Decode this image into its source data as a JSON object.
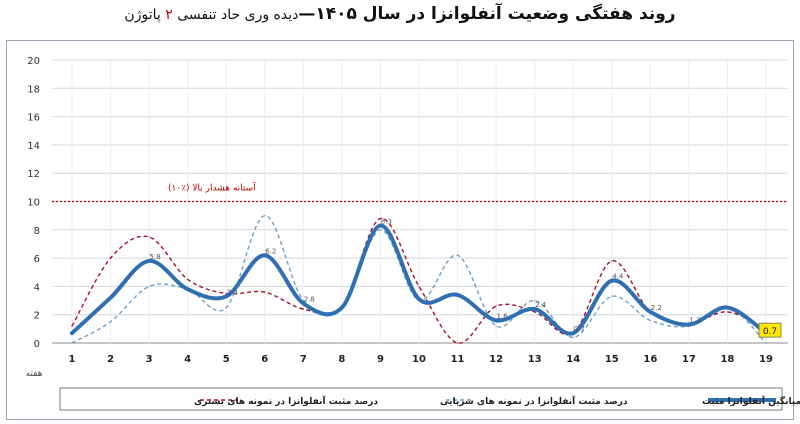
{
  "title": {
    "main": "روند هفتگی وضعیت آنفلوانزا در سال ۱۴۰۵",
    "dash": "—",
    "sub_prefix": "دیده وری حاد تنفسی",
    "sub_number": "۲",
    "sub_suffix": "پاتوژن"
  },
  "chart_data": {
    "type": "line",
    "x": [
      1,
      2,
      3,
      4,
      5,
      6,
      7,
      8,
      9,
      10,
      11,
      12,
      13,
      14,
      15,
      16,
      17,
      18,
      19
    ],
    "xtick_labels": [
      "1",
      "2",
      "3",
      "4",
      "5",
      "6",
      "7",
      "8",
      "9",
      "10",
      "11",
      "12",
      "13",
      "14",
      "15",
      "16",
      "17",
      "18",
      "19"
    ],
    "xlabel": "هفته",
    "ylim": [
      0,
      20
    ],
    "yticks": [
      0,
      2,
      4,
      6,
      8,
      10,
      12,
      14,
      16,
      18,
      20
    ],
    "grid": true,
    "threshold": {
      "value": 10,
      "label": "آستانه هشدار بالا (٪۱۰)",
      "color": "#c00000"
    },
    "series": [
      {
        "name": "درصد مثبت آنفلوانزا در نمونه های بستری",
        "style": "dashed",
        "color": "#a8102a",
        "values": [
          1.2,
          6.0,
          7.5,
          4.5,
          3.5,
          3.6,
          2.4,
          2.6,
          8.8,
          4.0,
          0.0,
          2.6,
          2.2,
          0.7,
          5.8,
          2.2,
          1.4,
          2.2,
          1.0
        ]
      },
      {
        "name": "درصد مثبت آنفلوانزا در نمونه های سرپایی",
        "style": "dashed",
        "color": "#6f9fc7",
        "values": [
          0.0,
          1.5,
          4.0,
          3.8,
          2.5,
          9.0,
          3.0,
          2.4,
          8.0,
          3.0,
          6.2,
          1.2,
          3.0,
          0.4,
          3.3,
          1.6,
          1.2,
          2.6,
          0.0
        ]
      },
      {
        "name": "میانگین آنفلوانزا مثبت",
        "style": "solid",
        "color": "#2f6fb2",
        "values": [
          0.7,
          3.2,
          5.8,
          3.8,
          3.3,
          6.2,
          2.8,
          2.5,
          8.3,
          3.1,
          3.4,
          1.6,
          2.4,
          0.7,
          4.4,
          2.2,
          1.3,
          2.5,
          0.7
        ],
        "point_labels": [
          "",
          "",
          "5.8",
          "",
          "3.3",
          "6.2",
          "2.8",
          "",
          "8.3",
          "",
          "",
          "1.6",
          "2.4",
          "0.7",
          "4.4",
          "2.2",
          "1.3",
          "",
          "0.7"
        ]
      }
    ],
    "last_value_callout": "0.7",
    "legend_position": "bottom"
  }
}
